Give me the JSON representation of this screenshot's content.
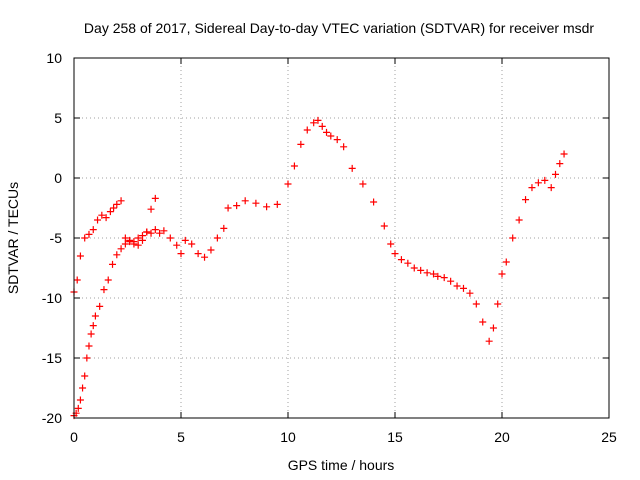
{
  "chart_data": {
    "type": "scatter",
    "title": "Day 258 of 2017, Sidereal Day-to-day VTEC variation (SDTVAR) for receiver msdr",
    "xlabel": "GPS time / hours",
    "ylabel": "SDTVAR / TECUs",
    "xlim": [
      0,
      25
    ],
    "ylim": [
      -20,
      10
    ],
    "xticks": [
      0,
      5,
      10,
      15,
      20,
      25
    ],
    "yticks": [
      -20,
      -15,
      -10,
      -5,
      0,
      5,
      10
    ],
    "grid": true,
    "marker": "plus",
    "color": "#ff0000",
    "series": [
      {
        "x": [
          0.0,
          0.15,
          0.3,
          0.5,
          0.7,
          0.9,
          1.1,
          1.3,
          1.5,
          1.7,
          1.85,
          2.0,
          2.2,
          2.4,
          2.6,
          2.8,
          3.0,
          3.2,
          3.4,
          3.6,
          3.8,
          4.0,
          4.2,
          4.5,
          4.8,
          5.0,
          5.2,
          5.5,
          5.8,
          6.1,
          6.4,
          6.7,
          7.0,
          7.2,
          7.6,
          8.0,
          8.5,
          9.0,
          9.5,
          10.0,
          10.3,
          10.6,
          10.9,
          11.2,
          11.4,
          11.6,
          11.8,
          12.0,
          12.3,
          12.6,
          13.0,
          13.5,
          14.0,
          14.5,
          14.8,
          15.0,
          15.3,
          15.6,
          15.9,
          16.2,
          16.5,
          16.8,
          17.0,
          17.3,
          17.6,
          17.9,
          18.2,
          18.5,
          18.8,
          19.1,
          19.4,
          19.6,
          19.8,
          20.0,
          20.2,
          20.5,
          20.8,
          21.1,
          21.4,
          21.7,
          22.0,
          22.3,
          22.5,
          22.7,
          22.9
        ],
        "y": [
          -9.5,
          -8.5,
          -6.5,
          -5.0,
          -4.7,
          -4.3,
          -3.5,
          -3.1,
          -3.3,
          -2.8,
          -2.5,
          -2.2,
          -1.9,
          -5.0,
          -5.2,
          -5.3,
          -5.0,
          -4.8,
          -4.5,
          -4.6,
          -4.3,
          -4.6,
          -4.4,
          -5.0,
          -5.6,
          -6.3,
          -5.2,
          -5.5,
          -6.3,
          -6.6,
          -6.0,
          -5.0,
          -4.2,
          -2.5,
          -2.3,
          -1.9,
          -2.1,
          -2.4,
          -2.2,
          -0.5,
          1.0,
          2.8,
          4.0,
          4.6,
          4.8,
          4.3,
          3.8,
          3.5,
          3.2,
          2.6,
          0.8,
          -0.5,
          -2.0,
          -4.0,
          -5.5,
          -6.3,
          -6.8,
          -7.1,
          -7.5,
          -7.7,
          -7.9,
          -8.0,
          -8.2,
          -8.3,
          -8.6,
          -9.0,
          -9.2,
          -9.6,
          -10.5,
          -12.0,
          -13.6,
          -12.5,
          -10.5,
          -8.0,
          -7.0,
          -5.0,
          -3.5,
          -1.8,
          -0.8,
          -0.4,
          -0.2,
          -0.8,
          0.3,
          1.2,
          2.0
        ]
      },
      {
        "x": [
          0.0,
          0.1,
          0.2,
          0.3,
          0.4,
          0.5,
          0.6,
          0.7,
          0.8,
          0.9,
          1.0,
          1.2,
          1.4,
          1.6,
          1.8,
          2.0,
          2.2,
          2.4,
          2.6,
          2.8,
          3.0,
          3.2,
          3.4,
          3.6,
          3.8
        ],
        "y": [
          -19.8,
          -19.6,
          -19.2,
          -18.5,
          -17.5,
          -16.5,
          -15.0,
          -14.0,
          -13.0,
          -12.3,
          -11.5,
          -10.7,
          -9.3,
          -8.5,
          -7.2,
          -6.4,
          -5.9,
          -5.5,
          -5.3,
          -5.5,
          -5.6,
          -5.2,
          -4.5,
          -2.6,
          -1.7
        ]
      }
    ]
  }
}
